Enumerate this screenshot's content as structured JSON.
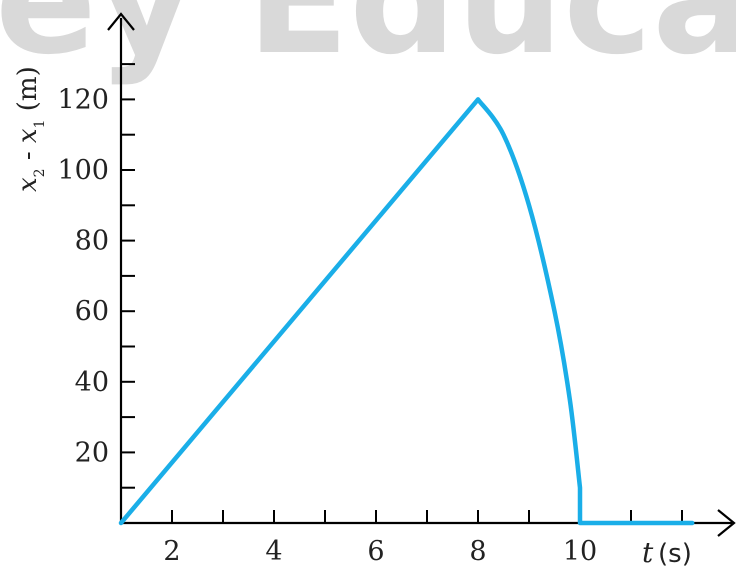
{
  "watermark": "ey Educa",
  "chart_data": {
    "type": "line",
    "title": "",
    "xlabel": {
      "var": "t",
      "unit": "(s)"
    },
    "ylabel": {
      "x2": "x",
      "sub2": "2",
      "minus": " - ",
      "x1": "x",
      "sub1": "1",
      "unit": " (m)"
    },
    "xlim": [
      1,
      13
    ],
    "ylim": [
      0,
      135
    ],
    "x_ticks": [
      2,
      4,
      6,
      8,
      10
    ],
    "y_ticks": [
      20,
      40,
      60,
      80,
      100,
      120
    ],
    "series": [
      {
        "color": "#1aaee8",
        "x": [
          1,
          8,
          8.5,
          9,
          9.5,
          9.8,
          10,
          10,
          12.2
        ],
        "y": [
          0,
          120,
          110,
          90,
          60,
          35,
          10,
          0,
          0
        ]
      }
    ]
  }
}
